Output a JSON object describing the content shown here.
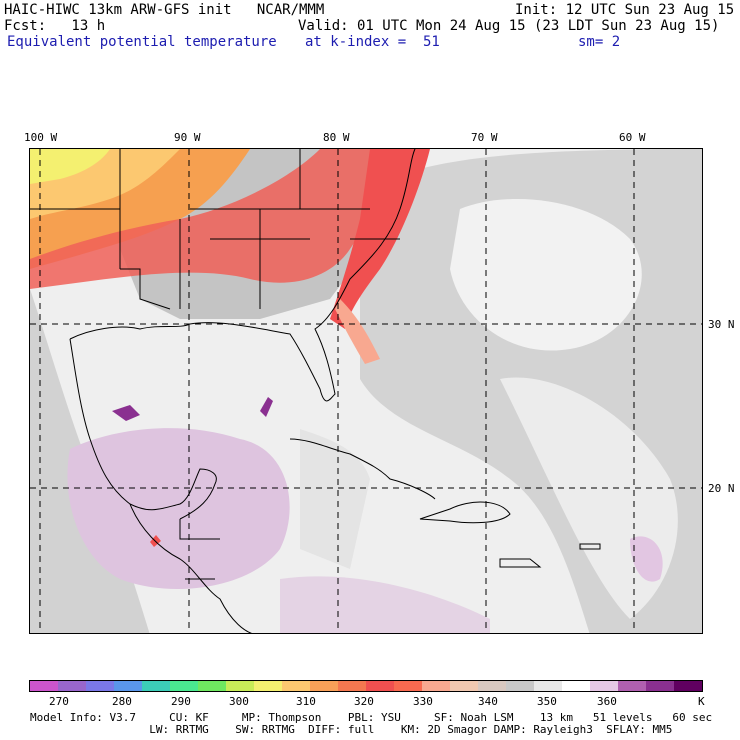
{
  "header": {
    "line1_left": "HAIC-HIWC 13km ARW-GFS init   NCAR/MMM",
    "line1_right": "Init: 12 UTC Sun 23 Aug 15",
    "line2_left": "Fcst:   13 h",
    "line2_right": "Valid: 01 UTC Mon 24 Aug 15 (23 LDT Sun 23 Aug 15)",
    "line3_field": "Equivalent potential temperature",
    "line3_level": "at k-index =  51",
    "line3_smooth": "sm= 2"
  },
  "map": {
    "longitude_labels": [
      "100 W",
      "90 W",
      "80 W",
      "70 W",
      "60 W"
    ],
    "latitude_labels": [
      "30 N",
      "20 N"
    ]
  },
  "legend": {
    "colors": [
      "#cc55cc",
      "#9966cc",
      "#7b78e8",
      "#5a96ea",
      "#3ccdb8",
      "#4ae890",
      "#6fe860",
      "#c8ec58",
      "#f4f070",
      "#fcc870",
      "#f8a058",
      "#f47850",
      "#f05050",
      "#f86a50",
      "#f8a890",
      "#f0c8b0",
      "#d8c8c0",
      "#c8c8c8",
      "#e8e8e8",
      "#ffffff",
      "#e6c8e6",
      "#b060b0",
      "#8a3090",
      "#600060"
    ],
    "labels": [
      "270",
      "280",
      "290",
      "300",
      "310",
      "320",
      "330",
      "340",
      "350",
      "360"
    ],
    "unit": "K"
  },
  "footer": {
    "line1": "Model Info: V3.7     CU: KF     MP: Thompson    PBL: YSU     SF: Noah LSM    13 km   51 levels   60 sec",
    "line2": "                  LW: RRTMG    SW: RRTMG  DIFF: full    KM: 2D Smagor DAMP: Rayleigh3  SFLAY: MM5"
  }
}
